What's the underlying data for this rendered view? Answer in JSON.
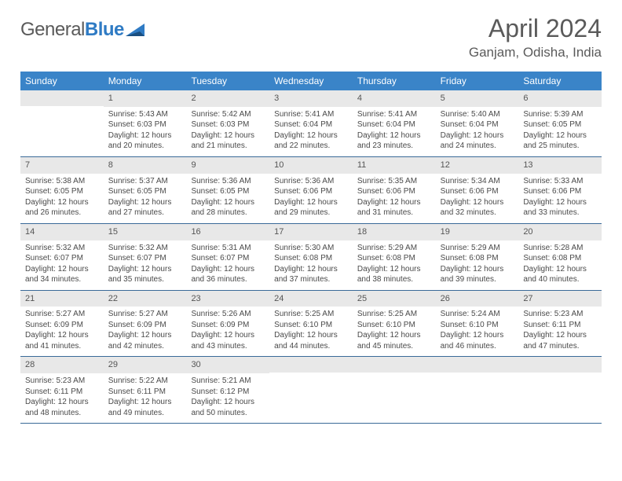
{
  "brand": {
    "part1": "General",
    "part2": "Blue"
  },
  "title": "April 2024",
  "location": "Ganjam, Odisha, India",
  "colors": {
    "header_bg": "#3a84c8",
    "header_text": "#ffffff",
    "daynum_bg": "#e8e8e8",
    "border": "#3a6a98",
    "text": "#4a4a4a",
    "brand_gray": "#5a5a5a",
    "brand_blue": "#2f7bc4"
  },
  "weekdays": [
    "Sunday",
    "Monday",
    "Tuesday",
    "Wednesday",
    "Thursday",
    "Friday",
    "Saturday"
  ],
  "weeks": [
    [
      {
        "empty": true
      },
      {
        "n": "1",
        "sr": "Sunrise: 5:43 AM",
        "ss": "Sunset: 6:03 PM",
        "dl1": "Daylight: 12 hours",
        "dl2": "and 20 minutes."
      },
      {
        "n": "2",
        "sr": "Sunrise: 5:42 AM",
        "ss": "Sunset: 6:03 PM",
        "dl1": "Daylight: 12 hours",
        "dl2": "and 21 minutes."
      },
      {
        "n": "3",
        "sr": "Sunrise: 5:41 AM",
        "ss": "Sunset: 6:04 PM",
        "dl1": "Daylight: 12 hours",
        "dl2": "and 22 minutes."
      },
      {
        "n": "4",
        "sr": "Sunrise: 5:41 AM",
        "ss": "Sunset: 6:04 PM",
        "dl1": "Daylight: 12 hours",
        "dl2": "and 23 minutes."
      },
      {
        "n": "5",
        "sr": "Sunrise: 5:40 AM",
        "ss": "Sunset: 6:04 PM",
        "dl1": "Daylight: 12 hours",
        "dl2": "and 24 minutes."
      },
      {
        "n": "6",
        "sr": "Sunrise: 5:39 AM",
        "ss": "Sunset: 6:05 PM",
        "dl1": "Daylight: 12 hours",
        "dl2": "and 25 minutes."
      }
    ],
    [
      {
        "n": "7",
        "sr": "Sunrise: 5:38 AM",
        "ss": "Sunset: 6:05 PM",
        "dl1": "Daylight: 12 hours",
        "dl2": "and 26 minutes."
      },
      {
        "n": "8",
        "sr": "Sunrise: 5:37 AM",
        "ss": "Sunset: 6:05 PM",
        "dl1": "Daylight: 12 hours",
        "dl2": "and 27 minutes."
      },
      {
        "n": "9",
        "sr": "Sunrise: 5:36 AM",
        "ss": "Sunset: 6:05 PM",
        "dl1": "Daylight: 12 hours",
        "dl2": "and 28 minutes."
      },
      {
        "n": "10",
        "sr": "Sunrise: 5:36 AM",
        "ss": "Sunset: 6:06 PM",
        "dl1": "Daylight: 12 hours",
        "dl2": "and 29 minutes."
      },
      {
        "n": "11",
        "sr": "Sunrise: 5:35 AM",
        "ss": "Sunset: 6:06 PM",
        "dl1": "Daylight: 12 hours",
        "dl2": "and 31 minutes."
      },
      {
        "n": "12",
        "sr": "Sunrise: 5:34 AM",
        "ss": "Sunset: 6:06 PM",
        "dl1": "Daylight: 12 hours",
        "dl2": "and 32 minutes."
      },
      {
        "n": "13",
        "sr": "Sunrise: 5:33 AM",
        "ss": "Sunset: 6:06 PM",
        "dl1": "Daylight: 12 hours",
        "dl2": "and 33 minutes."
      }
    ],
    [
      {
        "n": "14",
        "sr": "Sunrise: 5:32 AM",
        "ss": "Sunset: 6:07 PM",
        "dl1": "Daylight: 12 hours",
        "dl2": "and 34 minutes."
      },
      {
        "n": "15",
        "sr": "Sunrise: 5:32 AM",
        "ss": "Sunset: 6:07 PM",
        "dl1": "Daylight: 12 hours",
        "dl2": "and 35 minutes."
      },
      {
        "n": "16",
        "sr": "Sunrise: 5:31 AM",
        "ss": "Sunset: 6:07 PM",
        "dl1": "Daylight: 12 hours",
        "dl2": "and 36 minutes."
      },
      {
        "n": "17",
        "sr": "Sunrise: 5:30 AM",
        "ss": "Sunset: 6:08 PM",
        "dl1": "Daylight: 12 hours",
        "dl2": "and 37 minutes."
      },
      {
        "n": "18",
        "sr": "Sunrise: 5:29 AM",
        "ss": "Sunset: 6:08 PM",
        "dl1": "Daylight: 12 hours",
        "dl2": "and 38 minutes."
      },
      {
        "n": "19",
        "sr": "Sunrise: 5:29 AM",
        "ss": "Sunset: 6:08 PM",
        "dl1": "Daylight: 12 hours",
        "dl2": "and 39 minutes."
      },
      {
        "n": "20",
        "sr": "Sunrise: 5:28 AM",
        "ss": "Sunset: 6:08 PM",
        "dl1": "Daylight: 12 hours",
        "dl2": "and 40 minutes."
      }
    ],
    [
      {
        "n": "21",
        "sr": "Sunrise: 5:27 AM",
        "ss": "Sunset: 6:09 PM",
        "dl1": "Daylight: 12 hours",
        "dl2": "and 41 minutes."
      },
      {
        "n": "22",
        "sr": "Sunrise: 5:27 AM",
        "ss": "Sunset: 6:09 PM",
        "dl1": "Daylight: 12 hours",
        "dl2": "and 42 minutes."
      },
      {
        "n": "23",
        "sr": "Sunrise: 5:26 AM",
        "ss": "Sunset: 6:09 PM",
        "dl1": "Daylight: 12 hours",
        "dl2": "and 43 minutes."
      },
      {
        "n": "24",
        "sr": "Sunrise: 5:25 AM",
        "ss": "Sunset: 6:10 PM",
        "dl1": "Daylight: 12 hours",
        "dl2": "and 44 minutes."
      },
      {
        "n": "25",
        "sr": "Sunrise: 5:25 AM",
        "ss": "Sunset: 6:10 PM",
        "dl1": "Daylight: 12 hours",
        "dl2": "and 45 minutes."
      },
      {
        "n": "26",
        "sr": "Sunrise: 5:24 AM",
        "ss": "Sunset: 6:10 PM",
        "dl1": "Daylight: 12 hours",
        "dl2": "and 46 minutes."
      },
      {
        "n": "27",
        "sr": "Sunrise: 5:23 AM",
        "ss": "Sunset: 6:11 PM",
        "dl1": "Daylight: 12 hours",
        "dl2": "and 47 minutes."
      }
    ],
    [
      {
        "n": "28",
        "sr": "Sunrise: 5:23 AM",
        "ss": "Sunset: 6:11 PM",
        "dl1": "Daylight: 12 hours",
        "dl2": "and 48 minutes."
      },
      {
        "n": "29",
        "sr": "Sunrise: 5:22 AM",
        "ss": "Sunset: 6:11 PM",
        "dl1": "Daylight: 12 hours",
        "dl2": "and 49 minutes."
      },
      {
        "n": "30",
        "sr": "Sunrise: 5:21 AM",
        "ss": "Sunset: 6:12 PM",
        "dl1": "Daylight: 12 hours",
        "dl2": "and 50 minutes."
      },
      {
        "empty": true
      },
      {
        "empty": true
      },
      {
        "empty": true
      },
      {
        "empty": true
      }
    ]
  ]
}
